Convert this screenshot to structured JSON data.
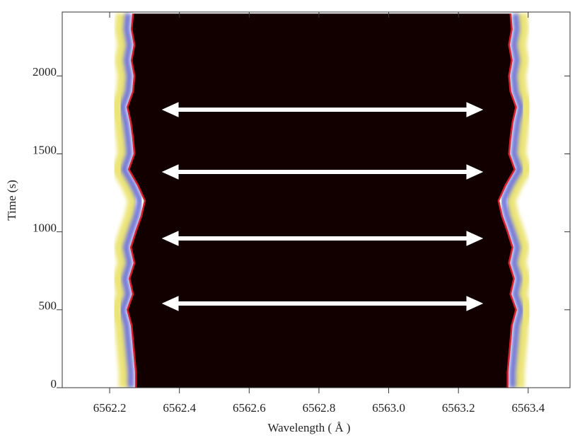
{
  "chart_data": {
    "type": "line-profile",
    "xlabel": "Wavelength ( Å )",
    "ylabel": "Time (s)",
    "xlim": [
      6562.064,
      6563.52
    ],
    "ylim": [
      0,
      2410
    ],
    "xticks": [
      6562.2,
      6562.4,
      6562.6,
      6562.8,
      {
        "value": 6563.0,
        "label": "6563.0"
      },
      6563.2,
      6563.4
    ],
    "yticks": [
      0,
      500,
      1000,
      1500,
      2000
    ],
    "background": "#120000",
    "y": [
      0,
      100,
      200,
      300,
      400,
      500,
      600,
      700,
      800,
      900,
      1000,
      1100,
      1200,
      1300,
      1400,
      1500,
      1600,
      1700,
      1800,
      1900,
      2000,
      2100,
      2200,
      2300,
      2400
    ],
    "series": [
      {
        "color": "#d8202c",
        "x": [
          6562.275,
          6562.275,
          6562.271,
          6562.267,
          6562.263,
          6562.251,
          6562.267,
          6562.257,
          6562.271,
          6562.261,
          6562.275,
          6562.291,
          6562.301,
          6562.281,
          6562.255,
          6562.271,
          6562.267,
          6562.261,
          6562.251,
          6562.267,
          6562.271,
          6562.263,
          6562.271,
          6562.263,
          6562.267
        ]
      },
      {
        "color": "#d8202c",
        "x": [
          6563.341,
          6563.341,
          6563.345,
          6563.349,
          6563.353,
          6563.365,
          6563.349,
          6563.359,
          6563.345,
          6563.355,
          6563.341,
          6563.325,
          6563.315,
          6563.335,
          6563.361,
          6563.345,
          6563.349,
          6563.355,
          6563.365,
          6563.349,
          6563.345,
          6563.353,
          6563.345,
          6563.353,
          6563.349
        ]
      }
    ]
  }
}
